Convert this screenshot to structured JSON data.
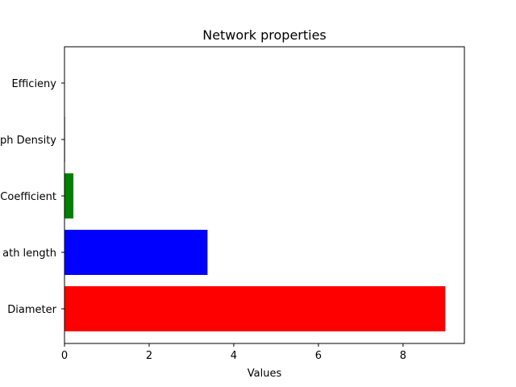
{
  "chart_data": {
    "type": "bar",
    "orientation": "horizontal",
    "title": "Network properties",
    "xlabel": "Values",
    "ylabel": "",
    "categories": [
      "Diameter",
      "Path length",
      "Coefficient",
      "Graph Density",
      "Efficieny"
    ],
    "category_labels_visible": [
      "Diameter",
      "ath length",
      "Coefficient",
      "ph Density",
      "Efficieny"
    ],
    "values": [
      9,
      3.38,
      0.21,
      0.012,
      0.0
    ],
    "colors": [
      "#ff0000",
      "#0000ff",
      "#008000",
      "#000000",
      "#00bfbf"
    ],
    "xlim": [
      0,
      9.45
    ],
    "xticks": [
      0,
      2,
      4,
      6,
      8
    ],
    "grid": false,
    "legend": "none"
  }
}
